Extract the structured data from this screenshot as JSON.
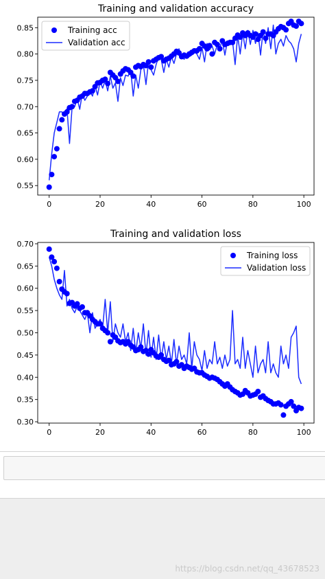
{
  "chart_data": [
    {
      "type": "line",
      "title": "Training and validation accuracy",
      "xlabel": "",
      "ylabel": "",
      "xlim": [
        -4.5,
        104
      ],
      "ylim": [
        0.532,
        0.87
      ],
      "xticks": [
        0,
        20,
        40,
        60,
        80,
        100
      ],
      "yticks": [
        0.55,
        0.6,
        0.65,
        0.7,
        0.75,
        0.8,
        0.85
      ],
      "ytick_labels": [
        "0.55",
        "0.60",
        "0.65",
        "0.70",
        "0.75",
        "0.80",
        "0.85"
      ],
      "legend_position": "upper left",
      "grid": false,
      "series": [
        {
          "name": "Training acc",
          "style": "dots",
          "color": "#0000ff",
          "x": [
            0,
            1,
            2,
            3,
            4,
            5,
            6,
            7,
            8,
            9,
            10,
            11,
            12,
            13,
            14,
            15,
            16,
            17,
            18,
            19,
            20,
            21,
            22,
            23,
            24,
            25,
            26,
            27,
            28,
            29,
            30,
            31,
            32,
            33,
            34,
            35,
            36,
            37,
            38,
            39,
            40,
            41,
            42,
            43,
            44,
            45,
            46,
            47,
            48,
            49,
            50,
            51,
            52,
            53,
            54,
            55,
            56,
            57,
            58,
            59,
            60,
            61,
            62,
            63,
            64,
            65,
            66,
            67,
            68,
            69,
            70,
            71,
            72,
            73,
            74,
            75,
            76,
            77,
            78,
            79,
            80,
            81,
            82,
            83,
            84,
            85,
            86,
            87,
            88,
            89,
            90,
            91,
            92,
            93,
            94,
            95,
            96,
            97,
            98,
            99
          ],
          "y": [
            0.547,
            0.571,
            0.605,
            0.62,
            0.658,
            0.675,
            0.686,
            0.69,
            0.698,
            0.7,
            0.71,
            0.712,
            0.718,
            0.72,
            0.725,
            0.725,
            0.728,
            0.73,
            0.738,
            0.745,
            0.746,
            0.75,
            0.752,
            0.744,
            0.765,
            0.76,
            0.755,
            0.748,
            0.762,
            0.768,
            0.772,
            0.77,
            0.765,
            0.758,
            0.775,
            0.778,
            0.776,
            0.78,
            0.778,
            0.785,
            0.775,
            0.787,
            0.79,
            0.793,
            0.795,
            0.787,
            0.79,
            0.792,
            0.796,
            0.8,
            0.805,
            0.802,
            0.795,
            0.798,
            0.796,
            0.8,
            0.803,
            0.806,
            0.806,
            0.81,
            0.82,
            0.815,
            0.81,
            0.816,
            0.8,
            0.822,
            0.818,
            0.81,
            0.825,
            0.818,
            0.82,
            0.822,
            0.822,
            0.83,
            0.836,
            0.832,
            0.84,
            0.835,
            0.84,
            0.835,
            0.832,
            0.838,
            0.828,
            0.835,
            0.842,
            0.83,
            0.838,
            0.838,
            0.835,
            0.842,
            0.848,
            0.852,
            0.85,
            0.846,
            0.858,
            0.862,
            0.855,
            0.853,
            0.862,
            0.858
          ]
        },
        {
          "name": "Validation acc",
          "style": "line",
          "color": "#1a2bff",
          "x": [
            0,
            1,
            2,
            3,
            4,
            5,
            6,
            7,
            8,
            9,
            10,
            11,
            12,
            13,
            14,
            15,
            16,
            17,
            18,
            19,
            20,
            21,
            22,
            23,
            24,
            25,
            26,
            27,
            28,
            29,
            30,
            31,
            32,
            33,
            34,
            35,
            36,
            37,
            38,
            39,
            40,
            41,
            42,
            43,
            44,
            45,
            46,
            47,
            48,
            49,
            50,
            51,
            52,
            53,
            54,
            55,
            56,
            57,
            58,
            59,
            60,
            61,
            62,
            63,
            64,
            65,
            66,
            67,
            68,
            69,
            70,
            71,
            72,
            73,
            74,
            75,
            76,
            77,
            78,
            79,
            80,
            81,
            82,
            83,
            84,
            85,
            86,
            87,
            88,
            89,
            90,
            91,
            92,
            93,
            94,
            95,
            96,
            97,
            98,
            99
          ],
          "y": [
            0.56,
            0.61,
            0.65,
            0.67,
            0.69,
            0.69,
            0.685,
            0.696,
            0.63,
            0.698,
            0.7,
            0.715,
            0.695,
            0.725,
            0.712,
            0.72,
            0.73,
            0.72,
            0.74,
            0.722,
            0.748,
            0.735,
            0.75,
            0.73,
            0.758,
            0.735,
            0.745,
            0.71,
            0.755,
            0.74,
            0.76,
            0.758,
            0.77,
            0.72,
            0.76,
            0.735,
            0.77,
            0.78,
            0.742,
            0.785,
            0.77,
            0.76,
            0.78,
            0.795,
            0.79,
            0.765,
            0.79,
            0.775,
            0.795,
            0.782,
            0.8,
            0.81,
            0.795,
            0.79,
            0.8,
            0.795,
            0.798,
            0.805,
            0.8,
            0.79,
            0.812,
            0.785,
            0.82,
            0.808,
            0.815,
            0.8,
            0.818,
            0.812,
            0.825,
            0.798,
            0.825,
            0.818,
            0.825,
            0.78,
            0.835,
            0.8,
            0.84,
            0.81,
            0.845,
            0.818,
            0.845,
            0.82,
            0.84,
            0.798,
            0.845,
            0.82,
            0.85,
            0.81,
            0.855,
            0.8,
            0.82,
            0.828,
            0.815,
            0.835,
            0.825,
            0.82,
            0.81,
            0.785,
            0.82,
            0.838
          ]
        }
      ]
    },
    {
      "type": "line",
      "title": "Training and validation loss",
      "xlabel": "",
      "ylabel": "",
      "xlim": [
        -4.5,
        104
      ],
      "ylim": [
        0.297,
        0.703
      ],
      "xticks": [
        0,
        20,
        40,
        60,
        80,
        100
      ],
      "yticks": [
        0.3,
        0.35,
        0.4,
        0.45,
        0.5,
        0.55,
        0.6,
        0.65,
        0.7
      ],
      "ytick_labels": [
        "0.30",
        "0.35",
        "0.40",
        "0.45",
        "0.50",
        "0.55",
        "0.60",
        "0.65",
        "0.70"
      ],
      "legend_position": "upper right",
      "grid": false,
      "series": [
        {
          "name": "Training loss",
          "style": "dots",
          "color": "#0000ff",
          "x": [
            0,
            1,
            2,
            3,
            4,
            5,
            6,
            7,
            8,
            9,
            10,
            11,
            12,
            13,
            14,
            15,
            16,
            17,
            18,
            19,
            20,
            21,
            22,
            23,
            24,
            25,
            26,
            27,
            28,
            29,
            30,
            31,
            32,
            33,
            34,
            35,
            36,
            37,
            38,
            39,
            40,
            41,
            42,
            43,
            44,
            45,
            46,
            47,
            48,
            49,
            50,
            51,
            52,
            53,
            54,
            55,
            56,
            57,
            58,
            59,
            60,
            61,
            62,
            63,
            64,
            65,
            66,
            67,
            68,
            69,
            70,
            71,
            72,
            73,
            74,
            75,
            76,
            77,
            78,
            79,
            80,
            81,
            82,
            83,
            84,
            85,
            86,
            87,
            88,
            89,
            90,
            91,
            92,
            93,
            94,
            95,
            96,
            97,
            98,
            99
          ],
          "y": [
            0.688,
            0.67,
            0.66,
            0.645,
            0.615,
            0.598,
            0.592,
            0.588,
            0.566,
            0.568,
            0.56,
            0.565,
            0.555,
            0.558,
            0.545,
            0.545,
            0.538,
            0.53,
            0.525,
            0.52,
            0.52,
            0.51,
            0.505,
            0.5,
            0.48,
            0.495,
            0.49,
            0.482,
            0.478,
            0.48,
            0.475,
            0.48,
            0.472,
            0.468,
            0.46,
            0.462,
            0.468,
            0.458,
            0.46,
            0.452,
            0.462,
            0.455,
            0.448,
            0.445,
            0.45,
            0.44,
            0.436,
            0.438,
            0.428,
            0.43,
            0.435,
            0.425,
            0.428,
            0.42,
            0.425,
            0.422,
            0.418,
            0.42,
            0.412,
            0.41,
            0.41,
            0.405,
            0.402,
            0.398,
            0.4,
            0.398,
            0.395,
            0.39,
            0.385,
            0.38,
            0.385,
            0.378,
            0.372,
            0.368,
            0.365,
            0.36,
            0.362,
            0.37,
            0.365,
            0.358,
            0.36,
            0.362,
            0.368,
            0.355,
            0.358,
            0.352,
            0.348,
            0.345,
            0.34,
            0.34,
            0.342,
            0.338,
            0.315,
            0.335,
            0.34,
            0.345,
            0.335,
            0.325,
            0.332,
            0.33
          ]
        },
        {
          "name": "Validation loss",
          "style": "line",
          "color": "#1a2bff",
          "x": [
            0,
            1,
            2,
            3,
            4,
            5,
            6,
            7,
            8,
            9,
            10,
            11,
            12,
            13,
            14,
            15,
            16,
            17,
            18,
            19,
            20,
            21,
            22,
            23,
            24,
            25,
            26,
            27,
            28,
            29,
            30,
            31,
            32,
            33,
            34,
            35,
            36,
            37,
            38,
            39,
            40,
            41,
            42,
            43,
            44,
            45,
            46,
            47,
            48,
            49,
            50,
            51,
            52,
            53,
            54,
            55,
            56,
            57,
            58,
            59,
            60,
            61,
            62,
            63,
            64,
            65,
            66,
            67,
            68,
            69,
            70,
            71,
            72,
            73,
            74,
            75,
            76,
            77,
            78,
            79,
            80,
            81,
            82,
            83,
            84,
            85,
            86,
            87,
            88,
            89,
            90,
            91,
            92,
            93,
            94,
            95,
            96,
            97,
            98,
            99
          ],
          "y": [
            0.67,
            0.65,
            0.62,
            0.6,
            0.585,
            0.575,
            0.64,
            0.56,
            0.575,
            0.555,
            0.545,
            0.56,
            0.55,
            0.54,
            0.53,
            0.545,
            0.5,
            0.545,
            0.51,
            0.52,
            0.53,
            0.51,
            0.575,
            0.5,
            0.57,
            0.48,
            0.52,
            0.5,
            0.49,
            0.52,
            0.48,
            0.5,
            0.46,
            0.51,
            0.455,
            0.5,
            0.465,
            0.52,
            0.45,
            0.505,
            0.445,
            0.49,
            0.44,
            0.495,
            0.44,
            0.48,
            0.44,
            0.47,
            0.43,
            0.485,
            0.43,
            0.47,
            0.44,
            0.45,
            0.43,
            0.5,
            0.42,
            0.48,
            0.45,
            0.44,
            0.415,
            0.46,
            0.42,
            0.44,
            0.43,
            0.48,
            0.43,
            0.445,
            0.42,
            0.45,
            0.425,
            0.44,
            0.55,
            0.43,
            0.44,
            0.42,
            0.49,
            0.42,
            0.46,
            0.43,
            0.4,
            0.47,
            0.41,
            0.43,
            0.44,
            0.41,
            0.48,
            0.41,
            0.43,
            0.41,
            0.4,
            0.47,
            0.43,
            0.45,
            0.42,
            0.49,
            0.5,
            0.515,
            0.4,
            0.385
          ]
        }
      ]
    }
  ],
  "watermark": "https://blog.csdn.net/qq_43678523"
}
